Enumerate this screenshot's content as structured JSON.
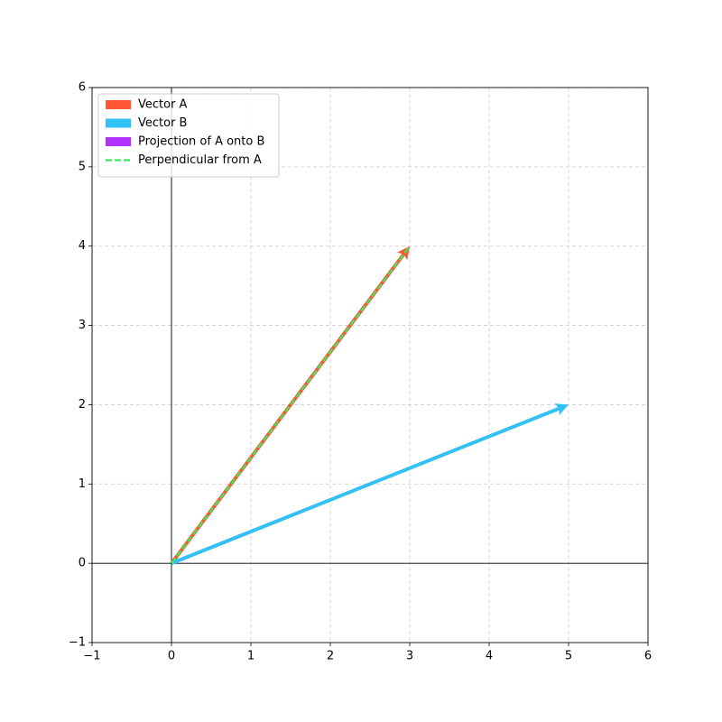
{
  "chart_data": {
    "type": "vector",
    "series": [
      {
        "name": "Vector A",
        "color": "#ff5733",
        "style": "arrow",
        "x": [
          0,
          3
        ],
        "y": [
          0,
          4
        ]
      },
      {
        "name": "Vector B",
        "color": "#33c1f5",
        "style": "arrow",
        "x": [
          0,
          5
        ],
        "y": [
          0,
          2
        ]
      },
      {
        "name": "Projection of A onto B",
        "color": "#b233ff",
        "style": "arrow",
        "x": [
          0,
          0
        ],
        "y": [
          0,
          0
        ]
      },
      {
        "name": "Perpendicular from A",
        "color": "#33ee57",
        "style": "dashed",
        "x": [
          0,
          3
        ],
        "y": [
          0,
          4
        ]
      }
    ],
    "xlim": [
      -1,
      6
    ],
    "ylim": [
      -1,
      6
    ],
    "xticks": [
      {
        "value": -1,
        "label": "−1"
      },
      0,
      1,
      2,
      3,
      4,
      5,
      6
    ],
    "yticks": [
      {
        "value": -1,
        "label": "−1"
      },
      0,
      1,
      2,
      3,
      4,
      5,
      6
    ],
    "grid": true,
    "legend": "upper left"
  }
}
